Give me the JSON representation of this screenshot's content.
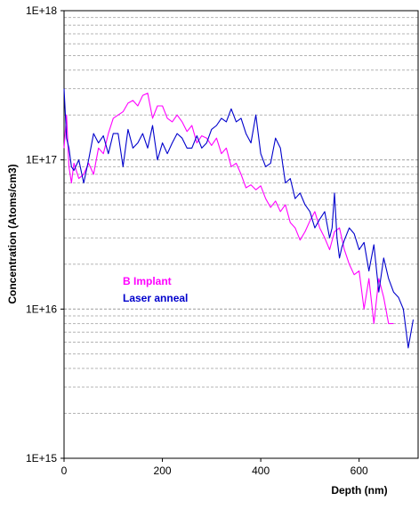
{
  "chart_data": {
    "type": "line",
    "xlabel": "Depth (nm)",
    "ylabel": "Concentration (Atoms/cm3)",
    "y_scale": "log",
    "xlim": [
      0,
      720
    ],
    "ylim": [
      1000000000000000.0,
      1e+18
    ],
    "x_ticks": [
      0,
      200,
      400,
      600
    ],
    "y_ticks": [
      1000000000000000.0,
      1e+16,
      1e+17,
      1e+18
    ],
    "y_tick_labels": [
      "1E+15",
      "1E+16",
      "1E+17",
      "1E+18"
    ],
    "grid": "horizontal dashed minor gridlines",
    "legend_position": "middle-left inside plot",
    "series": [
      {
        "name": "B Implant",
        "color": "#ff00ff",
        "x": [
          0,
          5,
          10,
          15,
          20,
          30,
          40,
          50,
          60,
          70,
          80,
          90,
          100,
          110,
          120,
          130,
          140,
          150,
          160,
          170,
          180,
          190,
          200,
          210,
          220,
          230,
          240,
          250,
          260,
          270,
          280,
          290,
          300,
          310,
          320,
          330,
          340,
          350,
          360,
          370,
          380,
          390,
          400,
          410,
          420,
          430,
          440,
          450,
          460,
          470,
          480,
          490,
          500,
          510,
          520,
          530,
          540,
          550,
          560,
          570,
          580,
          590,
          600,
          610,
          620,
          630,
          640,
          650,
          660,
          670
        ],
        "y": [
          1.2e+17,
          2e+17,
          9e+16,
          7e+16,
          9.5e+16,
          7.5e+16,
          8e+16,
          9.5e+16,
          8e+16,
          1.2e+17,
          1.1e+17,
          1.5e+17,
          1.9e+17,
          2e+17,
          2.1e+17,
          2.4e+17,
          2.5e+17,
          2.3e+17,
          2.7e+17,
          2.8e+17,
          1.9e+17,
          2.3e+17,
          2.3e+17,
          1.9e+17,
          1.8e+17,
          2e+17,
          1.8e+17,
          1.55e+17,
          1.7e+17,
          1.3e+17,
          1.45e+17,
          1.4e+17,
          1.25e+17,
          1.4e+17,
          1.1e+17,
          1.2e+17,
          9e+16,
          9.5e+16,
          8e+16,
          6.5e+16,
          6.8e+16,
          6.3e+16,
          6.7e+16,
          5.5e+16,
          4.8e+16,
          5.3e+16,
          4.5e+16,
          5e+16,
          3.8e+16,
          3.5e+16,
          2.9e+16,
          3.3e+16,
          3.9e+16,
          4.5e+16,
          3.5e+16,
          3e+16,
          2.5e+16,
          3.3e+16,
          3.5e+16,
          2.5e+16,
          2e+16,
          1.7e+16,
          1.8e+16,
          1e+16,
          1.6e+16,
          8000000000000000.0,
          1.6e+16,
          1.2e+16,
          8000000000000000.0,
          8000000000000000.0
        ]
      },
      {
        "name": "Laser anneal",
        "color": "#0000cc",
        "x": [
          0,
          5,
          10,
          15,
          20,
          30,
          40,
          50,
          60,
          70,
          80,
          90,
          100,
          110,
          120,
          130,
          140,
          150,
          160,
          170,
          180,
          190,
          200,
          210,
          220,
          230,
          240,
          250,
          260,
          270,
          280,
          290,
          300,
          310,
          320,
          330,
          340,
          350,
          360,
          370,
          380,
          390,
          400,
          410,
          420,
          430,
          440,
          450,
          460,
          470,
          480,
          490,
          500,
          510,
          520,
          530,
          540,
          545,
          550,
          555,
          560,
          565,
          570,
          580,
          590,
          600,
          610,
          620,
          630,
          640,
          650,
          660,
          670,
          680,
          690,
          700,
          710
        ],
        "y": [
          3e+17,
          1.4e+17,
          1.2e+17,
          9e+16,
          8.5e+16,
          1e+17,
          7e+16,
          1e+17,
          1.5e+17,
          1.3e+17,
          1.45e+17,
          1.1e+17,
          1.5e+17,
          1.5e+17,
          9e+16,
          1.6e+17,
          1.2e+17,
          1.3e+17,
          1.5e+17,
          1.2e+17,
          1.7e+17,
          1e+17,
          1.3e+17,
          1.1e+17,
          1.3e+17,
          1.5e+17,
          1.4e+17,
          1.2e+17,
          1.2e+17,
          1.45e+17,
          1.2e+17,
          1.3e+17,
          1.6e+17,
          1.7e+17,
          1.9e+17,
          1.8e+17,
          2.2e+17,
          1.8e+17,
          1.9e+17,
          1.5e+17,
          1.3e+17,
          2e+17,
          1.1e+17,
          9e+16,
          9.5e+16,
          1.4e+17,
          1.2e+17,
          7e+16,
          7.5e+16,
          5.5e+16,
          6e+16,
          5e+16,
          4.5e+16,
          3.5e+16,
          4e+16,
          4.5e+16,
          3e+16,
          3.5e+16,
          6e+16,
          3e+16,
          2.2e+16,
          2.6e+16,
          2.9e+16,
          3.5e+16,
          3.2e+16,
          2.5e+16,
          2.8e+16,
          1.8e+16,
          2.7e+16,
          1.3e+16,
          2.2e+16,
          1.6e+16,
          1.3e+16,
          1.2e+16,
          1e+16,
          5500000000000000.0,
          8500000000000000.0
        ]
      }
    ]
  }
}
